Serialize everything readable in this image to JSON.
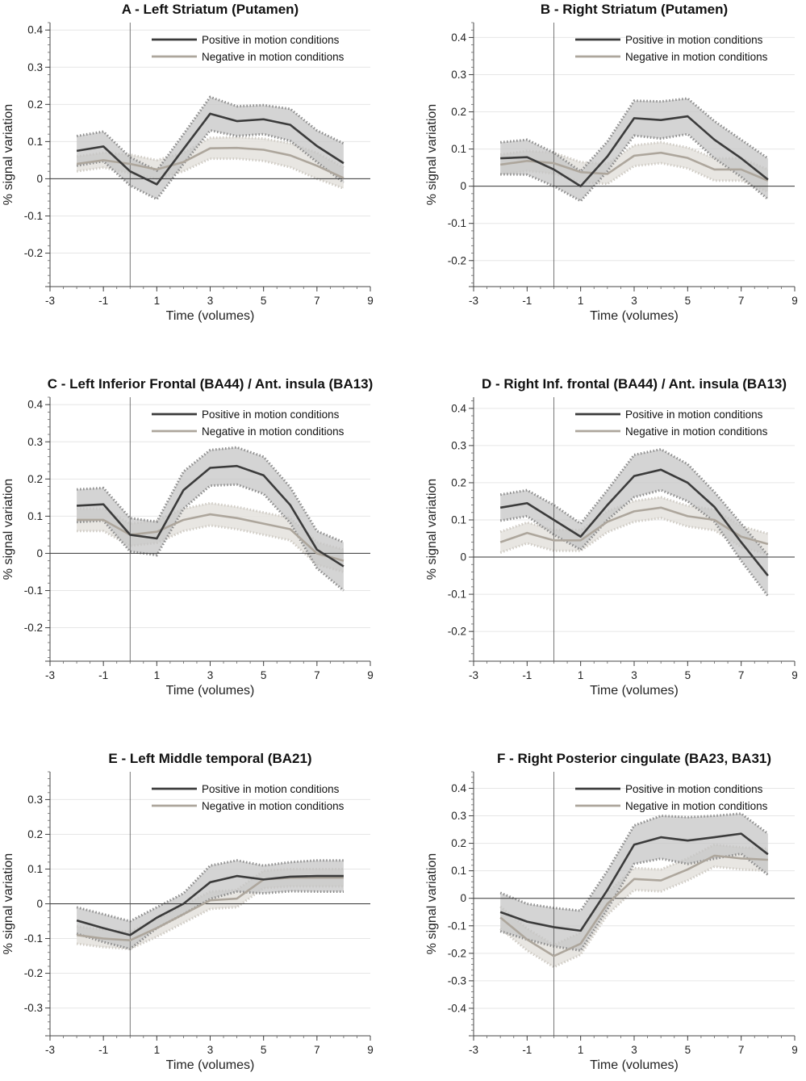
{
  "colors": {
    "positive": "#3b3b3b",
    "negative": "#ada69c",
    "positive_band": "#c6c6c6",
    "negative_band": "#e4e2dd",
    "positive_band_edge": "#8c8c8c",
    "negative_band_edge": "#cfcbc4"
  },
  "chart_data": [
    {
      "type": "line",
      "title": "A - Left Striatum (Putamen)",
      "xlabel": "Time (volumes)",
      "ylabel": "% signal variation",
      "xlim": [
        -3,
        9
      ],
      "xticks": [
        "-3",
        "-1",
        "1",
        "3",
        "5",
        "7",
        "9"
      ],
      "ylim": [
        -0.29,
        0.42
      ],
      "yticks": [
        "-0.2",
        "-0.1",
        "0",
        "0.1",
        "0.2",
        "0.3",
        "0.4"
      ],
      "onset_line_x": 0,
      "legend_location": "top-right",
      "x": [
        -2,
        -1,
        0,
        1,
        2,
        3,
        4,
        5,
        6,
        7,
        8
      ],
      "series": [
        {
          "name": "Positive in motion conditions",
          "values": [
            0.075,
            0.087,
            0.02,
            -0.015,
            0.08,
            0.175,
            0.155,
            0.16,
            0.145,
            0.088,
            0.042
          ],
          "upper": [
            0.115,
            0.127,
            0.058,
            0.022,
            0.12,
            0.22,
            0.195,
            0.198,
            0.188,
            0.13,
            0.095
          ],
          "lower": [
            0.035,
            0.047,
            -0.018,
            -0.055,
            0.04,
            0.13,
            0.115,
            0.12,
            0.102,
            0.045,
            -0.01
          ]
        },
        {
          "name": "Negative in motion conditions",
          "values": [
            0.04,
            0.05,
            0.04,
            0.025,
            0.045,
            0.082,
            0.083,
            0.078,
            0.063,
            0.035,
            0.002
          ],
          "upper": [
            0.06,
            0.07,
            0.065,
            0.05,
            0.07,
            0.11,
            0.112,
            0.108,
            0.095,
            0.07,
            0.03
          ],
          "lower": [
            0.02,
            0.03,
            0.015,
            0.0,
            0.02,
            0.054,
            0.054,
            0.048,
            0.031,
            0.0,
            -0.026
          ]
        }
      ]
    },
    {
      "type": "line",
      "title": "B - Right Striatum (Putamen)",
      "xlabel": "Time (volumes)",
      "ylabel": "% signal variation",
      "xlim": [
        -3,
        9
      ],
      "xticks": [
        "-3",
        "-1",
        "1",
        "3",
        "5",
        "7",
        "9"
      ],
      "ylim": [
        -0.27,
        0.44
      ],
      "yticks": [
        "-0.2",
        "-0.1",
        "0",
        "0.1",
        "0.2",
        "0.3",
        "0.4"
      ],
      "onset_line_x": 0,
      "legend_location": "top-right",
      "x": [
        -2,
        -1,
        0,
        1,
        2,
        3,
        4,
        5,
        6,
        7,
        8
      ],
      "series": [
        {
          "name": "Positive in motion conditions",
          "values": [
            0.075,
            0.078,
            0.045,
            0.0,
            0.08,
            0.183,
            0.178,
            0.188,
            0.125,
            0.075,
            0.018
          ],
          "upper": [
            0.118,
            0.125,
            0.09,
            0.04,
            0.12,
            0.23,
            0.228,
            0.236,
            0.175,
            0.125,
            0.075
          ],
          "lower": [
            0.032,
            0.031,
            0.0,
            -0.04,
            0.04,
            0.136,
            0.128,
            0.14,
            0.075,
            0.025,
            -0.035
          ]
        },
        {
          "name": "Negative in motion conditions",
          "values": [
            0.058,
            0.068,
            0.062,
            0.038,
            0.033,
            0.082,
            0.09,
            0.076,
            0.045,
            0.045,
            0.015
          ],
          "upper": [
            0.085,
            0.095,
            0.09,
            0.065,
            0.06,
            0.11,
            0.118,
            0.104,
            0.075,
            0.075,
            0.045
          ],
          "lower": [
            0.031,
            0.041,
            0.034,
            0.011,
            0.006,
            0.054,
            0.062,
            0.048,
            0.015,
            0.015,
            -0.015
          ]
        }
      ]
    },
    {
      "type": "line",
      "title": "C - Left Inferior Frontal (BA44) / Ant. insula (BA13)",
      "xlabel": "Time (volumes)",
      "ylabel": "% signal variation",
      "xlim": [
        -3,
        9
      ],
      "xticks": [
        "-3",
        "-1",
        "1",
        "3",
        "5",
        "7",
        "9"
      ],
      "ylim": [
        -0.29,
        0.42
      ],
      "yticks": [
        "-0.2",
        "-0.1",
        "0",
        "0.1",
        "0.2",
        "0.3",
        "0.4"
      ],
      "onset_line_x": 0,
      "legend_location": "top-right",
      "x": [
        -2,
        -1,
        0,
        1,
        2,
        3,
        4,
        5,
        6,
        7,
        8
      ],
      "series": [
        {
          "name": "Positive in motion conditions",
          "values": [
            0.128,
            0.132,
            0.05,
            0.04,
            0.17,
            0.23,
            0.235,
            0.21,
            0.13,
            0.01,
            -0.035
          ],
          "upper": [
            0.172,
            0.176,
            0.095,
            0.085,
            0.22,
            0.278,
            0.285,
            0.26,
            0.178,
            0.06,
            0.03
          ],
          "lower": [
            0.084,
            0.088,
            0.005,
            -0.005,
            0.12,
            0.182,
            0.185,
            0.16,
            0.082,
            -0.04,
            -0.1
          ]
        },
        {
          "name": "Negative in motion conditions",
          "values": [
            0.09,
            0.09,
            0.05,
            0.058,
            0.09,
            0.105,
            0.095,
            0.08,
            0.065,
            0.0,
            -0.02
          ],
          "upper": [
            0.12,
            0.12,
            0.08,
            0.088,
            0.12,
            0.135,
            0.125,
            0.11,
            0.095,
            0.03,
            0.01
          ],
          "lower": [
            0.06,
            0.06,
            0.02,
            0.028,
            0.06,
            0.075,
            0.065,
            0.05,
            0.035,
            -0.03,
            -0.05
          ]
        }
      ]
    },
    {
      "type": "line",
      "title": "D - Right Inf. frontal (BA44) / Ant. insula (BA13)",
      "xlabel": "Time (volumes)",
      "ylabel": "% signal variation",
      "xlim": [
        -3,
        9
      ],
      "xticks": [
        "-3",
        "-1",
        "1",
        "3",
        "5",
        "7",
        "9"
      ],
      "ylim": [
        -0.28,
        0.43
      ],
      "yticks": [
        "-0.2",
        "-0.1",
        "0",
        "0.1",
        "0.2",
        "0.3",
        "0.4"
      ],
      "onset_line_x": 0,
      "legend_location": "top-right",
      "x": [
        -2,
        -1,
        0,
        1,
        2,
        3,
        4,
        5,
        6,
        7,
        8
      ],
      "series": [
        {
          "name": "Positive in motion conditions",
          "values": [
            0.133,
            0.145,
            0.1,
            0.055,
            0.14,
            0.218,
            0.235,
            0.2,
            0.135,
            0.04,
            -0.05
          ],
          "upper": [
            0.168,
            0.18,
            0.14,
            0.09,
            0.18,
            0.275,
            0.29,
            0.25,
            0.175,
            0.09,
            0.005
          ],
          "lower": [
            0.098,
            0.11,
            0.06,
            0.02,
            0.1,
            0.161,
            0.18,
            0.15,
            0.095,
            -0.01,
            -0.105
          ]
        },
        {
          "name": "Negative in motion conditions",
          "values": [
            0.04,
            0.065,
            0.045,
            0.045,
            0.095,
            0.123,
            0.133,
            0.11,
            0.1,
            0.055,
            0.035
          ],
          "upper": [
            0.068,
            0.093,
            0.073,
            0.073,
            0.123,
            0.151,
            0.161,
            0.138,
            0.128,
            0.083,
            0.063
          ],
          "lower": [
            0.012,
            0.037,
            0.017,
            0.017,
            0.067,
            0.095,
            0.105,
            0.082,
            0.072,
            0.027,
            0.007
          ]
        }
      ]
    },
    {
      "type": "line",
      "title": "E - Left Middle temporal (BA21)",
      "xlabel": "Time (volumes)",
      "ylabel": "% signal variation",
      "xlim": [
        -3,
        9
      ],
      "xticks": [
        "-3",
        "-1",
        "1",
        "3",
        "5",
        "7",
        "9"
      ],
      "ylim": [
        -0.38,
        0.38
      ],
      "yticks": [
        "-0.3",
        "-0.2",
        "-0.1",
        "0",
        "0.1",
        "0.2",
        "0.3"
      ],
      "onset_line_x": 0,
      "legend_location": "top-right",
      "x": [
        -2,
        -1,
        0,
        1,
        2,
        3,
        4,
        5,
        6,
        7,
        8
      ],
      "series": [
        {
          "name": "Positive in motion conditions",
          "values": [
            -0.048,
            -0.07,
            -0.09,
            -0.04,
            0.0,
            0.062,
            0.08,
            0.07,
            0.078,
            0.08,
            0.08
          ],
          "upper": [
            -0.01,
            -0.03,
            -0.05,
            -0.01,
            0.03,
            0.11,
            0.125,
            0.11,
            0.12,
            0.125,
            0.125
          ],
          "lower": [
            -0.086,
            -0.11,
            -0.13,
            -0.07,
            -0.03,
            0.014,
            0.035,
            0.03,
            0.036,
            0.035,
            0.035
          ]
        },
        {
          "name": "Negative in motion conditions",
          "values": [
            -0.09,
            -0.1,
            -0.105,
            -0.07,
            -0.03,
            0.01,
            0.015,
            0.07,
            0.075,
            0.075,
            0.075
          ],
          "upper": [
            -0.065,
            -0.075,
            -0.08,
            -0.045,
            -0.005,
            0.035,
            0.04,
            0.095,
            0.1,
            0.1,
            0.1
          ],
          "lower": [
            -0.115,
            -0.125,
            -0.13,
            -0.095,
            -0.055,
            -0.015,
            -0.01,
            0.045,
            0.05,
            0.05,
            0.05
          ]
        }
      ]
    },
    {
      "type": "line",
      "title": "F - Right Posterior cingulate (BA23, BA31)",
      "xlabel": "Time (volumes)",
      "ylabel": "% signal variation",
      "xlim": [
        -3,
        9
      ],
      "xticks": [
        "-3",
        "-1",
        "1",
        "3",
        "5",
        "7",
        "9"
      ],
      "ylim": [
        -0.5,
        0.46
      ],
      "yticks": [
        "-0.4",
        "-0.3",
        "-0.2",
        "-0.1",
        "0",
        "0.1",
        "0.2",
        "0.3",
        "0.4"
      ],
      "onset_line_x": 0,
      "legend_location": "top-right",
      "x": [
        -2,
        -1,
        0,
        1,
        2,
        3,
        4,
        5,
        6,
        7,
        8
      ],
      "series": [
        {
          "name": "Positive in motion conditions",
          "values": [
            -0.05,
            -0.085,
            -0.105,
            -0.118,
            0.03,
            0.195,
            0.222,
            0.21,
            0.222,
            0.235,
            0.16
          ],
          "upper": [
            0.02,
            -0.02,
            -0.035,
            -0.045,
            0.1,
            0.265,
            0.3,
            0.295,
            0.3,
            0.308,
            0.235
          ],
          "lower": [
            -0.12,
            -0.15,
            -0.175,
            -0.19,
            -0.04,
            0.125,
            0.144,
            0.125,
            0.144,
            0.162,
            0.085
          ]
        },
        {
          "name": "Negative in motion conditions",
          "values": [
            -0.07,
            -0.15,
            -0.21,
            -0.165,
            -0.02,
            0.07,
            0.065,
            0.105,
            0.155,
            0.145,
            0.14
          ],
          "upper": [
            -0.03,
            -0.11,
            -0.17,
            -0.125,
            0.02,
            0.11,
            0.105,
            0.145,
            0.195,
            0.185,
            0.18
          ],
          "lower": [
            -0.11,
            -0.19,
            -0.25,
            -0.205,
            -0.06,
            0.03,
            0.025,
            0.065,
            0.115,
            0.105,
            0.1
          ]
        }
      ]
    }
  ]
}
